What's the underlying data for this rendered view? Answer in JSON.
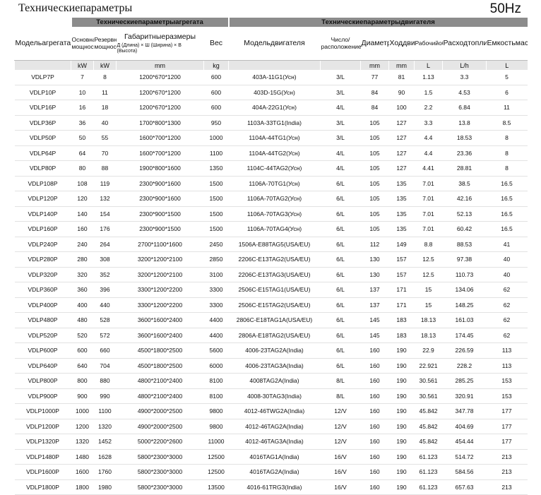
{
  "title": "Техническиепараметры",
  "frequency": "50Hz",
  "table": {
    "group_headers": [
      "Техническиепараметрыагрегата",
      "Техническиепараметрыдвигателя"
    ],
    "headers": [
      "Модельагрегата",
      "Основная мощность",
      "Резервная мощность",
      "Габаритныеразмеры",
      "Вес",
      "Модельдвигателя",
      "Число/расположениецилиндров",
      "Диаметрцилиндра",
      "Ходдвигателя",
      "Рабочийобъемдвигателя",
      "Расходтопливадвигателем",
      "Емкостьмасла"
    ],
    "dimension_note": "Д (Длина) × Ш (Ширина) × В (Высота)",
    "units": [
      "kW",
      "kW",
      "mm",
      "kg",
      "mm",
      "mm",
      "L",
      "L/h",
      "L"
    ],
    "rows": [
      [
        "VDLP7P",
        "7",
        "8",
        "1200*670*1200",
        "600",
        "403A-11G1(Усн)",
        "3/L",
        "77",
        "81",
        "1.13",
        "3.3",
        "5"
      ],
      [
        "VDLP10P",
        "10",
        "11",
        "1200*670*1200",
        "600",
        "403D-15G(Усн)",
        "3/L",
        "84",
        "90",
        "1.5",
        "4.53",
        "6"
      ],
      [
        "VDLP16P",
        "16",
        "18",
        "1200*670*1200",
        "600",
        "404A-22G1(Усн)",
        "4/L",
        "84",
        "100",
        "2.2",
        "6.84",
        "11"
      ],
      [
        "VDLP36P",
        "36",
        "40",
        "1700*800*1300",
        "950",
        "1103A-33TG1(India)",
        "3/L",
        "105",
        "127",
        "3.3",
        "13.8",
        "8.5"
      ],
      [
        "VDLP50P",
        "50",
        "55",
        "1600*700*1200",
        "1000",
        "1104A-44TG1(Усн)",
        "3/L",
        "105",
        "127",
        "4.4",
        "18.53",
        "8"
      ],
      [
        "VDLP64P",
        "64",
        "70",
        "1600*700*1200",
        "1100",
        "1104A-44TG2(Усн)",
        "4/L",
        "105",
        "127",
        "4.4",
        "23.36",
        "8"
      ],
      [
        "VDLP80P",
        "80",
        "88",
        "1900*800*1600",
        "1350",
        "1104C-44TAG2(Усн)",
        "4/L",
        "105",
        "127",
        "4.41",
        "28.81",
        "8"
      ],
      [
        "VDLP108P",
        "108",
        "119",
        "2300*900*1600",
        "1500",
        "1106A-70TG1(Усн)",
        "6/L",
        "105",
        "135",
        "7.01",
        "38.5",
        "16.5"
      ],
      [
        "VDLP120P",
        "120",
        "132",
        "2300*900*1600",
        "1500",
        "1106A-70TAG2(Усн)",
        "6/L",
        "105",
        "135",
        "7.01",
        "42.16",
        "16.5"
      ],
      [
        "VDLP140P",
        "140",
        "154",
        "2300*900*1500",
        "1500",
        "1106A-70TAG3(Усн)",
        "6/L",
        "105",
        "135",
        "7.01",
        "52.13",
        "16.5"
      ],
      [
        "VDLP160P",
        "160",
        "176",
        "2300*900*1500",
        "1500",
        "1106A-70TAG4(Усн)",
        "6/L",
        "105",
        "135",
        "7.01",
        "60.42",
        "16.5"
      ],
      [
        "VDLP240P",
        "240",
        "264",
        "2700*1100*1600",
        "2450",
        "1506A-E88TAG5(USA/EU)",
        "6/L",
        "112",
        "149",
        "8.8",
        "88.53",
        "41"
      ],
      [
        "VDLP280P",
        "280",
        "308",
        "3200*1200*2100",
        "2850",
        "2206C-E13TAG2(USA/EU)",
        "6/L",
        "130",
        "157",
        "12.5",
        "97.38",
        "40"
      ],
      [
        "VDLP320P",
        "320",
        "352",
        "3200*1200*2100",
        "3100",
        "2206C-E13TAG3(USA/EU)",
        "6/L",
        "130",
        "157",
        "12.5",
        "110.73",
        "40"
      ],
      [
        "VDLP360P",
        "360",
        "396",
        "3300*1200*2200",
        "3300",
        "2506C-E15TAG1(USA/EU)",
        "6/L",
        "137",
        "171",
        "15",
        "134.06",
        "62"
      ],
      [
        "VDLP400P",
        "400",
        "440",
        "3300*1200*2200",
        "3300",
        "2506C-E15TAG2(USA/EU)",
        "6/L",
        "137",
        "171",
        "15",
        "148.25",
        "62"
      ],
      [
        "VDLP480P",
        "480",
        "528",
        "3600*1600*2400",
        "4400",
        "2806C-E18TAG1A(USA/EU)",
        "6/L",
        "145",
        "183",
        "18.13",
        "161.03",
        "62"
      ],
      [
        "VDLP520P",
        "520",
        "572",
        "3600*1600*2400",
        "4400",
        "2806A-E18TAG2(USA/EU)",
        "6/L",
        "145",
        "183",
        "18.13",
        "174.45",
        "62"
      ],
      [
        "VDLP600P",
        "600",
        "660",
        "4500*1800*2500",
        "5600",
        "4006-23TAG2A(India)",
        "6/L",
        "160",
        "190",
        "22.9",
        "226.59",
        "113"
      ],
      [
        "VDLP640P",
        "640",
        "704",
        "4500*1800*2500",
        "6000",
        "4006-23TAG3A(India)",
        "6/L",
        "160",
        "190",
        "22.921",
        "228.2",
        "113"
      ],
      [
        "VDLP800P",
        "800",
        "880",
        "4800*2100*2400",
        "8100",
        "4008TAG2A(India)",
        "8/L",
        "160",
        "190",
        "30.561",
        "285.25",
        "153"
      ],
      [
        "VDLP900P",
        "900",
        "990",
        "4800*2100*2400",
        "8100",
        "4008-30TAG3(India)",
        "8/L",
        "160",
        "190",
        "30.561",
        "320.91",
        "153"
      ],
      [
        "VDLP1000P",
        "1000",
        "1100",
        "4900*2000*2500",
        "9800",
        "4012-46TWG2A(India)",
        "12/V",
        "160",
        "190",
        "45.842",
        "347.78",
        "177"
      ],
      [
        "VDLP1200P",
        "1200",
        "1320",
        "4900*2000*2500",
        "9800",
        "4012-46TAG2A(India)",
        "12/V",
        "160",
        "190",
        "45.842",
        "404.69",
        "177"
      ],
      [
        "VDLP1320P",
        "1320",
        "1452",
        "5000*2200*2600",
        "11000",
        "4012-46TAG3A(India)",
        "12/V",
        "160",
        "190",
        "45.842",
        "454.44",
        "177"
      ],
      [
        "VDLP1480P",
        "1480",
        "1628",
        "5800*2300*3000",
        "12500",
        "4016TAG1A(India)",
        "16/V",
        "160",
        "190",
        "61.123",
        "514.72",
        "213"
      ],
      [
        "VDLP1600P",
        "1600",
        "1760",
        "5800*2300*3000",
        "12500",
        "4016TAG2A(India)",
        "16/V",
        "160",
        "190",
        "61.123",
        "584.56",
        "213"
      ],
      [
        "VDLP1800P",
        "1800",
        "1980",
        "5800*2300*3000",
        "13500",
        "4016-61TRG3(India)",
        "16/V",
        "160",
        "190",
        "61.123",
        "657.63",
        "213"
      ]
    ]
  }
}
